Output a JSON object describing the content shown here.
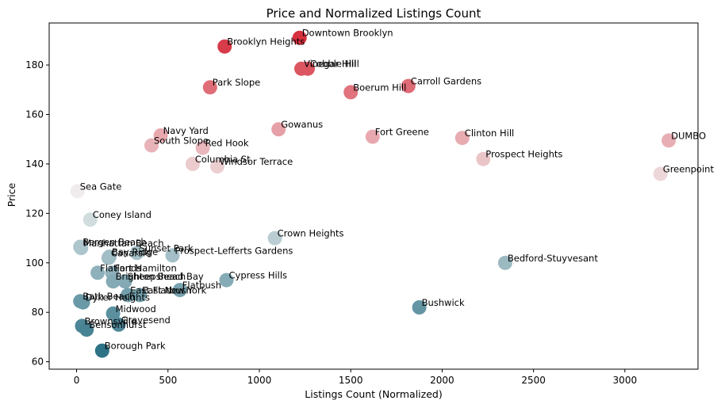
{
  "chart_data": {
    "type": "scatter",
    "title": "Price and Normalized Listings Count",
    "xlabel": "Listings Count (Normalized)",
    "ylabel": "Price",
    "xlim": [
      -150,
      3400
    ],
    "ylim": [
      57,
      197
    ],
    "xticks": [
      0,
      500,
      1000,
      1500,
      2000,
      2500,
      3000
    ],
    "yticks": [
      60,
      80,
      100,
      120,
      140,
      160,
      180
    ],
    "grid": false,
    "legend": "none",
    "color_low": "#2e7286",
    "color_mid": "#f0f0f0",
    "color_high": "#d7303f",
    "points": [
      {
        "label": "Downtown Brooklyn",
        "x": 1220,
        "y": 191
      },
      {
        "label": "Brooklyn Heights",
        "x": 810,
        "y": 187.5
      },
      {
        "label": "Vinegar Hill",
        "x": 1230,
        "y": 178.5
      },
      {
        "label": "Cobble Hill",
        "x": 1265,
        "y": 178.5
      },
      {
        "label": "Park Slope",
        "x": 730,
        "y": 171
      },
      {
        "label": "Carroll Gardens",
        "x": 1815,
        "y": 171.5
      },
      {
        "label": "Boerum Hill",
        "x": 1500,
        "y": 169
      },
      {
        "label": "Gowanus",
        "x": 1105,
        "y": 154
      },
      {
        "label": "Navy Yard",
        "x": 460,
        "y": 151.5
      },
      {
        "label": "Fort Greene",
        "x": 1620,
        "y": 151
      },
      {
        "label": "Clinton Hill",
        "x": 2110,
        "y": 150.5
      },
      {
        "label": "DUMBO",
        "x": 3240,
        "y": 149.5
      },
      {
        "label": "South Slope",
        "x": 410,
        "y": 147.5
      },
      {
        "label": "Red Hook",
        "x": 690,
        "y": 146.5
      },
      {
        "label": "Prospect Heights",
        "x": 2225,
        "y": 142
      },
      {
        "label": "Columbia St",
        "x": 635,
        "y": 140
      },
      {
        "label": "Windsor Terrace",
        "x": 770,
        "y": 139
      },
      {
        "label": "Greenpoint",
        "x": 3195,
        "y": 136
      },
      {
        "label": "Sea Gate",
        "x": 5,
        "y": 129
      },
      {
        "label": "Coney Island",
        "x": 75,
        "y": 117.5
      },
      {
        "label": "Crown Heights",
        "x": 1085,
        "y": 110
      },
      {
        "label": "Bergen Beach",
        "x": 20,
        "y": 106.5
      },
      {
        "label": "Manhattan Beach",
        "x": 25,
        "y": 106
      },
      {
        "label": "Sunset Park",
        "x": 330,
        "y": 104
      },
      {
        "label": "Prospect-Lefferts Gardens",
        "x": 525,
        "y": 103
      },
      {
        "label": "Bay Ridge",
        "x": 180,
        "y": 102.5
      },
      {
        "label": "Canarsie",
        "x": 175,
        "y": 102
      },
      {
        "label": "Bedford-Stuyvesant",
        "x": 2345,
        "y": 100
      },
      {
        "label": "Flatlands",
        "x": 115,
        "y": 96
      },
      {
        "label": "Fort Hamilton",
        "x": 195,
        "y": 96
      },
      {
        "label": "Brighton Beach",
        "x": 200,
        "y": 92.5
      },
      {
        "label": "Sheepshead Bay",
        "x": 265,
        "y": 92.5
      },
      {
        "label": "Cypress Hills",
        "x": 820,
        "y": 93
      },
      {
        "label": "Flatbush",
        "x": 565,
        "y": 89
      },
      {
        "label": "East Flatbush",
        "x": 280,
        "y": 87
      },
      {
        "label": "East New York",
        "x": 345,
        "y": 87
      },
      {
        "label": "Bath Beach",
        "x": 20,
        "y": 84.5
      },
      {
        "label": "Dyker Heights",
        "x": 35,
        "y": 84
      },
      {
        "label": "Bushwick",
        "x": 1875,
        "y": 82
      },
      {
        "label": "Midwood",
        "x": 200,
        "y": 79.5
      },
      {
        "label": "Brownsville",
        "x": 30,
        "y": 74.5
      },
      {
        "label": "Bensonhurst",
        "x": 55,
        "y": 73
      },
      {
        "label": "Gravesend",
        "x": 230,
        "y": 75
      },
      {
        "label": "Borough Park",
        "x": 140,
        "y": 64.5
      }
    ]
  }
}
